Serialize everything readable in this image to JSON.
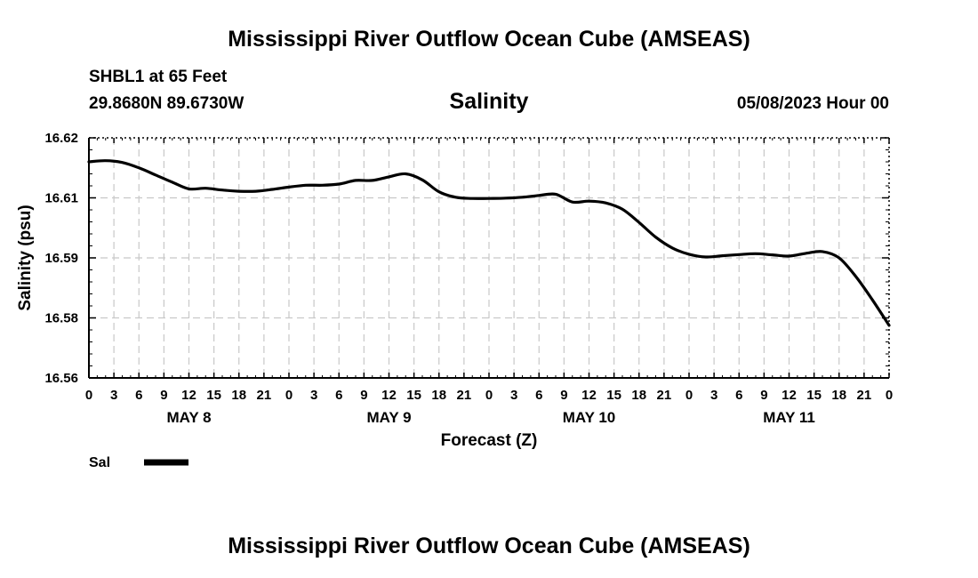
{
  "header": {
    "title": "Mississippi River Outflow Ocean Cube (AMSEAS)",
    "station": "SHBL1 at 65 Feet",
    "coords": "29.8680N  89.6730W",
    "datetime": "05/08/2023 Hour 00"
  },
  "footer": {
    "title": "Mississippi River Outflow Ocean Cube (AMSEAS)"
  },
  "chart_data": {
    "type": "line",
    "title": "Salinity",
    "xlabel": "Forecast (Z)",
    "ylabel": "Salinity (psu)",
    "y_ticks": [
      {
        "label": "16.62",
        "value": 16.62
      },
      {
        "label": "16.61",
        "value": 16.61
      },
      {
        "label": "16.59",
        "value": 16.59
      },
      {
        "label": "16.58",
        "value": 16.58
      },
      {
        "label": "16.56",
        "value": 16.56
      }
    ],
    "x_ticks": [
      "0",
      "3",
      "6",
      "9",
      "12",
      "15",
      "18",
      "21",
      "0",
      "3",
      "6",
      "9",
      "12",
      "15",
      "18",
      "21",
      "0",
      "3",
      "6",
      "9",
      "12",
      "15",
      "18",
      "21",
      "0",
      "3",
      "6",
      "9",
      "12",
      "15",
      "18",
      "21",
      "0"
    ],
    "day_labels": [
      {
        "label": "MAY 8",
        "hour": 12
      },
      {
        "label": "MAY 9",
        "hour": 36
      },
      {
        "label": "MAY 10",
        "hour": 60
      },
      {
        "label": "MAY 11",
        "hour": 84
      }
    ],
    "x_range_hours": [
      0,
      96
    ],
    "grid": true,
    "legend_position": "bottom-left",
    "series": [
      {
        "name": "Sal",
        "hours": [
          0,
          2,
          4,
          6,
          8,
          10,
          12,
          14,
          16,
          18,
          20,
          22,
          24,
          26,
          28,
          30,
          32,
          34,
          36,
          38,
          40,
          42,
          44,
          46,
          48,
          50,
          52,
          54,
          56,
          58,
          60,
          62,
          64,
          66,
          68,
          70,
          72,
          74,
          76,
          78,
          80,
          82,
          84,
          86,
          88,
          90,
          92,
          94,
          96
        ],
        "values": [
          16.616,
          16.6162,
          16.6159,
          16.615,
          16.6138,
          16.6126,
          16.6115,
          16.6116,
          16.6113,
          16.6111,
          16.6111,
          16.6114,
          16.6118,
          16.6121,
          16.6121,
          16.6123,
          16.6129,
          16.6129,
          16.6135,
          16.614,
          16.613,
          16.611,
          16.6101,
          16.6098,
          16.6098,
          16.6099,
          16.6101,
          16.6104,
          16.6106,
          16.6086,
          16.6089,
          16.6083,
          16.6062,
          16.6018,
          16.5969,
          16.5933,
          16.5912,
          16.5903,
          16.5907,
          16.5911,
          16.5914,
          16.591,
          16.5906,
          16.5915,
          16.5921,
          16.59,
          16.5869,
          16.583,
          16.5775
        ]
      }
    ]
  }
}
